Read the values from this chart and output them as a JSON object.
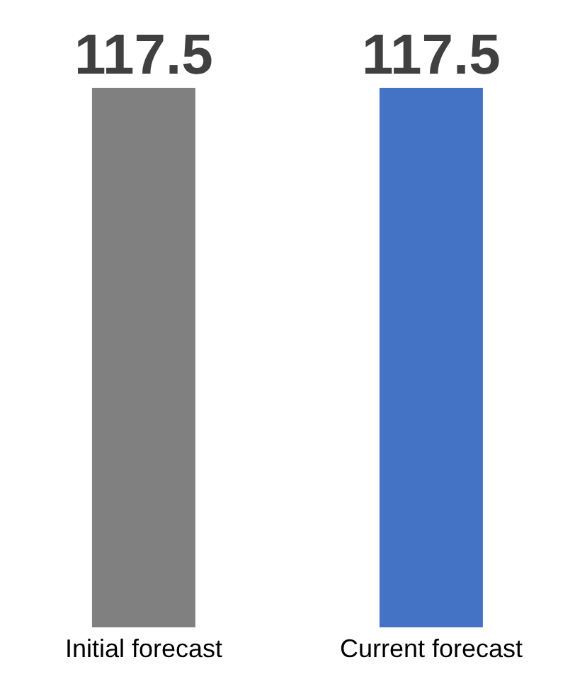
{
  "chart_data": {
    "type": "bar",
    "categories": [
      "Initial forecast",
      "Current forecast"
    ],
    "values": [
      117.5,
      117.5
    ],
    "colors": [
      "#808080",
      "#4472c4"
    ],
    "data_labels": true
  }
}
